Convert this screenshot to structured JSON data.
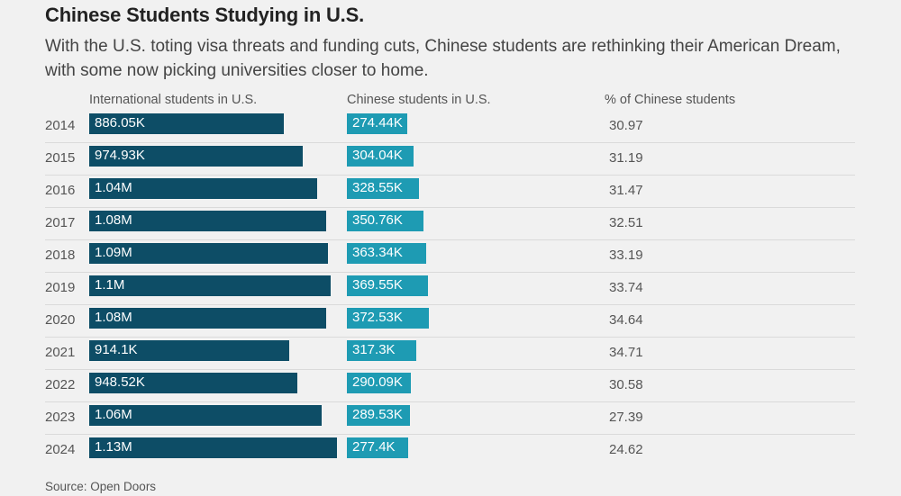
{
  "title": "Chinese Students Studying in U.S.",
  "subtitle": "With the U.S. toting visa threats and funding cuts, Chinese students are rethinking their American Dream, with some now picking universities closer to home.",
  "source": "Source: Open Doors",
  "colors": {
    "international": "#0d4d66",
    "chinese": "#1e9bb3"
  },
  "chart_data": {
    "type": "bar",
    "title": "Chinese Students Studying in U.S.",
    "columns": [
      "International students in U.S.",
      "Chinese students in U.S.",
      "% of Chinese students"
    ],
    "categories": [
      "2014",
      "2015",
      "2016",
      "2017",
      "2018",
      "2019",
      "2020",
      "2021",
      "2022",
      "2023",
      "2024"
    ],
    "series": [
      {
        "name": "International students in U.S.",
        "values": [
          886050,
          974930,
          1040000,
          1080000,
          1090000,
          1100000,
          1080000,
          914100,
          948520,
          1060000,
          1130000
        ],
        "labels": [
          "886.05K",
          "974.93K",
          "1.04M",
          "1.08M",
          "1.09M",
          "1.1M",
          "1.08M",
          "914.1K",
          "948.52K",
          "1.06M",
          "1.13M"
        ]
      },
      {
        "name": "Chinese students in U.S.",
        "values": [
          274440,
          304040,
          328550,
          350760,
          363340,
          369550,
          372530,
          317300,
          290090,
          289530,
          277400
        ],
        "labels": [
          "274.44K",
          "304.04K",
          "328.55K",
          "350.76K",
          "363.34K",
          "369.55K",
          "372.53K",
          "317.3K",
          "290.09K",
          "289.53K",
          "277.4K"
        ]
      },
      {
        "name": "% of Chinese students",
        "values": [
          30.97,
          31.19,
          31.47,
          32.51,
          33.19,
          33.74,
          34.64,
          34.71,
          30.58,
          27.39,
          24.62
        ],
        "labels": [
          "30.97",
          "31.19",
          "31.47",
          "32.51",
          "33.19",
          "33.74",
          "34.64",
          "34.71",
          "30.58",
          "27.39",
          "24.62"
        ]
      }
    ]
  }
}
